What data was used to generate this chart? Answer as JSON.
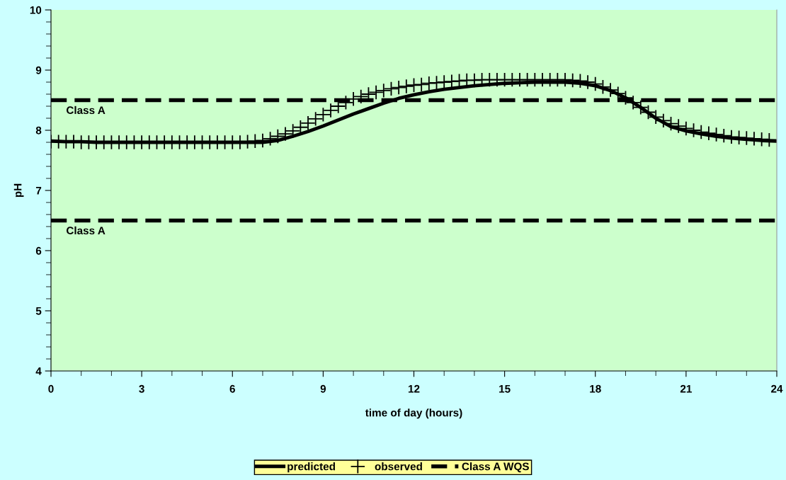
{
  "chart_data": {
    "type": "line",
    "xlabel": "time of day (hours)",
    "ylabel": "pH",
    "xlim": [
      0,
      24
    ],
    "xticks": [
      0,
      3,
      6,
      9,
      12,
      15,
      18,
      21,
      24
    ],
    "ylim": [
      4,
      10
    ],
    "yticks": [
      4,
      5,
      6,
      7,
      8,
      9,
      10
    ],
    "ref_lines": [
      {
        "axis": "y",
        "value": 6.5,
        "label": "Class A",
        "color": "#000000",
        "line_style": "dashed"
      }
    ],
    "grid": false,
    "legend": "bottom",
    "series": [
      {
        "name": "predicted",
        "color": "#000000",
        "marker": "none",
        "line_style": "solid",
        "x": [
          0,
          0.5,
          1,
          1.5,
          2,
          2.5,
          3,
          3.5,
          4,
          4.5,
          5,
          5.5,
          6,
          6.5,
          7,
          7.5,
          8,
          8.5,
          9,
          9.5,
          10,
          10.5,
          11,
          11.5,
          12,
          12.5,
          13,
          13.5,
          14,
          14.5,
          15,
          15.5,
          16,
          16.5,
          17,
          17.5,
          18,
          18.5,
          19,
          19.5,
          20,
          20.5,
          21,
          21.5,
          22,
          22.5,
          23,
          23.5,
          24
        ],
        "values": [
          7.82,
          7.81,
          7.81,
          7.8,
          7.8,
          7.8,
          7.8,
          7.8,
          7.8,
          7.8,
          7.8,
          7.8,
          7.8,
          7.8,
          7.8,
          7.83,
          7.9,
          7.98,
          8.07,
          8.17,
          8.27,
          8.36,
          8.45,
          8.53,
          8.59,
          8.64,
          8.68,
          8.71,
          8.74,
          8.76,
          8.78,
          8.79,
          8.8,
          8.8,
          8.8,
          8.78,
          8.74,
          8.66,
          8.54,
          8.38,
          8.2,
          8.06,
          7.99,
          7.94,
          7.9,
          7.87,
          7.85,
          7.83,
          7.82
        ]
      },
      {
        "name": "observed",
        "type": "scatter",
        "color": "#000000",
        "marker": "cross",
        "x": [
          0,
          0.25,
          0.5,
          0.75,
          1,
          1.25,
          1.5,
          1.75,
          2,
          2.25,
          2.5,
          2.75,
          3,
          3.25,
          3.5,
          3.75,
          4,
          4.25,
          4.5,
          4.75,
          5,
          5.25,
          5.5,
          5.75,
          6,
          6.25,
          6.5,
          6.75,
          7,
          7.25,
          7.5,
          7.75,
          8,
          8.25,
          8.5,
          8.75,
          9,
          9.25,
          9.5,
          9.75,
          10,
          10.25,
          10.5,
          10.75,
          11,
          11.25,
          11.5,
          11.75,
          12,
          12.25,
          12.5,
          12.75,
          13,
          13.25,
          13.5,
          13.75,
          14,
          14.25,
          14.5,
          14.75,
          15,
          15.25,
          15.5,
          15.75,
          16,
          16.25,
          16.5,
          16.75,
          17,
          17.25,
          17.5,
          17.75,
          18,
          18.25,
          18.5,
          18.75,
          19,
          19.25,
          19.5,
          19.75,
          20,
          20.25,
          20.5,
          20.75,
          21,
          21.25,
          21.5,
          21.75,
          22,
          22.25,
          22.5,
          22.75,
          23,
          23.25,
          23.5,
          23.75
        ],
        "values": [
          7.81,
          7.81,
          7.81,
          7.81,
          7.8,
          7.8,
          7.8,
          7.8,
          7.8,
          7.8,
          7.8,
          7.8,
          7.8,
          7.8,
          7.8,
          7.8,
          7.8,
          7.8,
          7.8,
          7.8,
          7.8,
          7.8,
          7.8,
          7.8,
          7.8,
          7.8,
          7.81,
          7.82,
          7.83,
          7.86,
          7.9,
          7.94,
          7.99,
          8.05,
          8.12,
          8.19,
          8.26,
          8.33,
          8.4,
          8.46,
          8.52,
          8.56,
          8.6,
          8.63,
          8.66,
          8.69,
          8.71,
          8.73,
          8.75,
          8.76,
          8.78,
          8.79,
          8.8,
          8.81,
          8.82,
          8.83,
          8.83,
          8.84,
          8.84,
          8.84,
          8.84,
          8.84,
          8.84,
          8.84,
          8.84,
          8.84,
          8.84,
          8.84,
          8.84,
          8.83,
          8.82,
          8.8,
          8.77,
          8.72,
          8.67,
          8.61,
          8.54,
          8.46,
          8.38,
          8.3,
          8.22,
          8.16,
          8.11,
          8.07,
          8.03,
          8.0,
          7.97,
          7.95,
          7.93,
          7.91,
          7.89,
          7.88,
          7.87,
          7.86,
          7.85,
          7.84
        ]
      },
      {
        "name": "Class A WQS",
        "type": "line",
        "color": "#000000",
        "marker": "none",
        "line_style": "dashed",
        "x": [
          0,
          24
        ],
        "values": [
          8.5,
          8.5
        ]
      }
    ],
    "annotations": [
      {
        "text": "Class A",
        "x": 0.5,
        "y": 8.5
      }
    ]
  }
}
